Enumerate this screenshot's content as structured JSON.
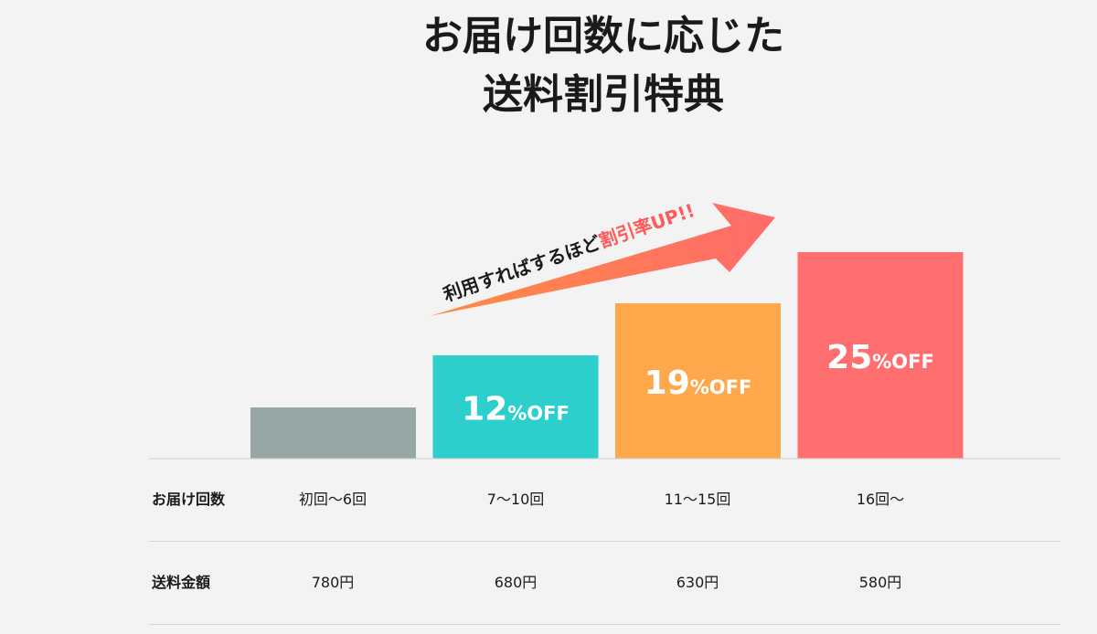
{
  "title": {
    "line1": "お届け回数に応じた",
    "line2": "送料割引特典"
  },
  "arrow_text": {
    "lead": "利用すればするほど",
    "highlight": "割引率UP!!"
  },
  "colors": {
    "background": "#f3f3f3",
    "bar_gray": "#96a7a5",
    "bar_teal": "#2ccfcc",
    "bar_orange": "#fea84b",
    "bar_red": "#ff6f6f",
    "arrow_start": "#ff8c42",
    "arrow_end": "#ff6b6b",
    "highlight_text": "#ff5a5a"
  },
  "chart_data": {
    "type": "bar",
    "categories": [
      "初回〜6回",
      "7〜10回",
      "11〜15回",
      "16回〜"
    ],
    "values": [
      0,
      12,
      19,
      25
    ],
    "data_labels": [
      {
        "number": "",
        "suffix": ""
      },
      {
        "number": "12",
        "suffix": "%OFF"
      },
      {
        "number": "19",
        "suffix": "%OFF"
      },
      {
        "number": "25",
        "suffix": "%OFF"
      }
    ],
    "bar_colors": [
      "#96a7a5",
      "#2ccfcc",
      "#fea84b",
      "#ff6f6f"
    ]
  },
  "table": {
    "rows": [
      {
        "header": "お届け回数",
        "cells": [
          "初回〜6回",
          "7〜10回",
          "11〜15回",
          "16回〜"
        ]
      },
      {
        "header": "送料金額",
        "cells": [
          "780円",
          "680円",
          "630円",
          "580円"
        ]
      }
    ]
  }
}
